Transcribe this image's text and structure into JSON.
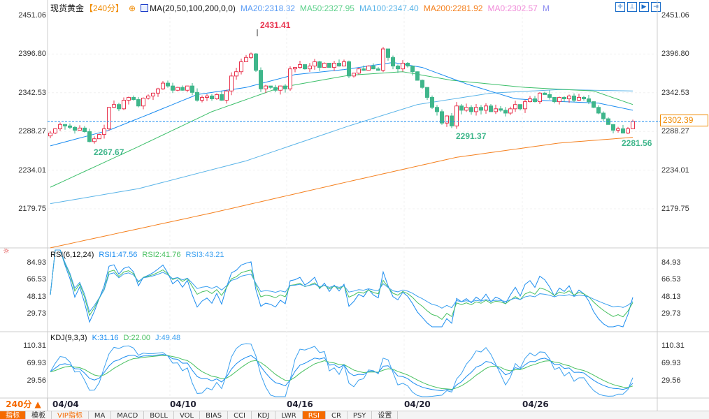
{
  "header": {
    "symbol": "现货黄金",
    "period": "【240分】",
    "ma_title": "MA(20,50,100,200,0,0)",
    "ma20": "MA20:2318.32",
    "ma50": "MA50:2327.95",
    "ma100": "MA100:2347.40",
    "ma200": "MA200:2281.92",
    "ma0": "MA0:2302.57",
    "m": "M"
  },
  "colors": {
    "up": "#e8344e",
    "down": "#3fb68b",
    "ma20": "#1a8cf0",
    "ma50": "#3cbf6a",
    "ma100": "#5ab4e8",
    "ma200": "#f5801e",
    "rsi1": "#1a8cf0",
    "rsi2": "#48c060",
    "rsi3": "#3aa0f0",
    "accent": "#f56a00"
  },
  "price_axis": {
    "ticks": [
      "2451.06",
      "2396.80",
      "2342.53",
      "2288.27",
      "2234.01",
      "2179.75"
    ],
    "min": 2179.75,
    "max": 2451.06,
    "current": "2302.39"
  },
  "annotations": {
    "high": "2431.41",
    "low1": "2267.67",
    "low2": "2291.37",
    "low3": "2281.56"
  },
  "rsi": {
    "title": "RSI(6,12,24)",
    "r1": "RSI1:47.56",
    "r2": "RSI2:41.76",
    "r3": "RSI3:43.21",
    "ticks": [
      "84.93",
      "66.53",
      "48.13",
      "29.73"
    ]
  },
  "kdj": {
    "title": "KDJ(9,3,3)",
    "k": "K:31.16",
    "d": "D:22.00",
    "j": "J:49.48",
    "ticks": [
      "110.31",
      "69.93",
      "29.56"
    ]
  },
  "dates": [
    "04/04",
    "04/10",
    "04/16",
    "04/20",
    "04/26"
  ],
  "period_button": "240分 ▲",
  "tabs": [
    "指标",
    "模板",
    "VIP指标",
    "MA",
    "MACD",
    "BOLL",
    "VOL",
    "BIAS",
    "CCI",
    "KDJ",
    "LWR",
    "RSI",
    "CR",
    "PSY",
    "设置"
  ],
  "active_tab": "RSI",
  "chart_data": {
    "type": "candlestick",
    "closes": [
      2286,
      2292,
      2298,
      2296,
      2294,
      2290,
      2293,
      2288,
      2274,
      2278,
      2284,
      2292,
      2322,
      2326,
      2320,
      2332,
      2336,
      2333,
      2324,
      2335,
      2338,
      2342,
      2348,
      2356,
      2352,
      2346,
      2350,
      2346,
      2352,
      2343,
      2332,
      2336,
      2338,
      2334,
      2340,
      2332,
      2345,
      2366,
      2372,
      2386,
      2392,
      2397,
      2374,
      2348,
      2352,
      2350,
      2346,
      2352,
      2348,
      2376,
      2378,
      2382,
      2376,
      2380,
      2386,
      2378,
      2384,
      2378,
      2384,
      2380,
      2386,
      2366,
      2370,
      2376,
      2374,
      2380,
      2376,
      2374,
      2404,
      2392,
      2380,
      2376,
      2384,
      2380,
      2372,
      2360,
      2350,
      2336,
      2322,
      2316,
      2300,
      2310,
      2296,
      2324,
      2318,
      2322,
      2316,
      2322,
      2318,
      2324,
      2316,
      2320,
      2318,
      2314,
      2320,
      2326,
      2320,
      2330,
      2334,
      2330,
      2342,
      2340,
      2336,
      2330,
      2336,
      2334,
      2338,
      2332,
      2336,
      2334,
      2330,
      2322,
      2314,
      2306,
      2298,
      2290,
      2292,
      2286,
      2292,
      2302.39
    ],
    "ma": {
      "ma20": [
        [
          0,
          2268
        ],
        [
          12,
          2290
        ],
        [
          20,
          2312
        ],
        [
          30,
          2340
        ],
        [
          40,
          2350
        ],
        [
          50,
          2368
        ],
        [
          60,
          2375
        ],
        [
          70,
          2385
        ],
        [
          76,
          2378
        ],
        [
          85,
          2355
        ],
        [
          95,
          2334
        ],
        [
          105,
          2330
        ],
        [
          112,
          2328
        ],
        [
          119,
          2318
        ]
      ],
      "ma50": [
        [
          0,
          2210
        ],
        [
          18,
          2267
        ],
        [
          33,
          2316
        ],
        [
          47,
          2350
        ],
        [
          61,
          2367
        ],
        [
          72,
          2372
        ],
        [
          82,
          2360
        ],
        [
          97,
          2350
        ],
        [
          111,
          2345
        ],
        [
          119,
          2326
        ]
      ],
      "ma100": [
        [
          0,
          2187
        ],
        [
          18,
          2208
        ],
        [
          40,
          2247
        ],
        [
          61,
          2296
        ],
        [
          75,
          2326
        ],
        [
          90,
          2342
        ],
        [
          104,
          2347
        ],
        [
          119,
          2345
        ]
      ],
      "ma200": [
        [
          0,
          2125
        ],
        [
          33,
          2174
        ],
        [
          61,
          2218
        ],
        [
          83,
          2252
        ],
        [
          104,
          2272
        ],
        [
          119,
          2280
        ]
      ]
    }
  }
}
